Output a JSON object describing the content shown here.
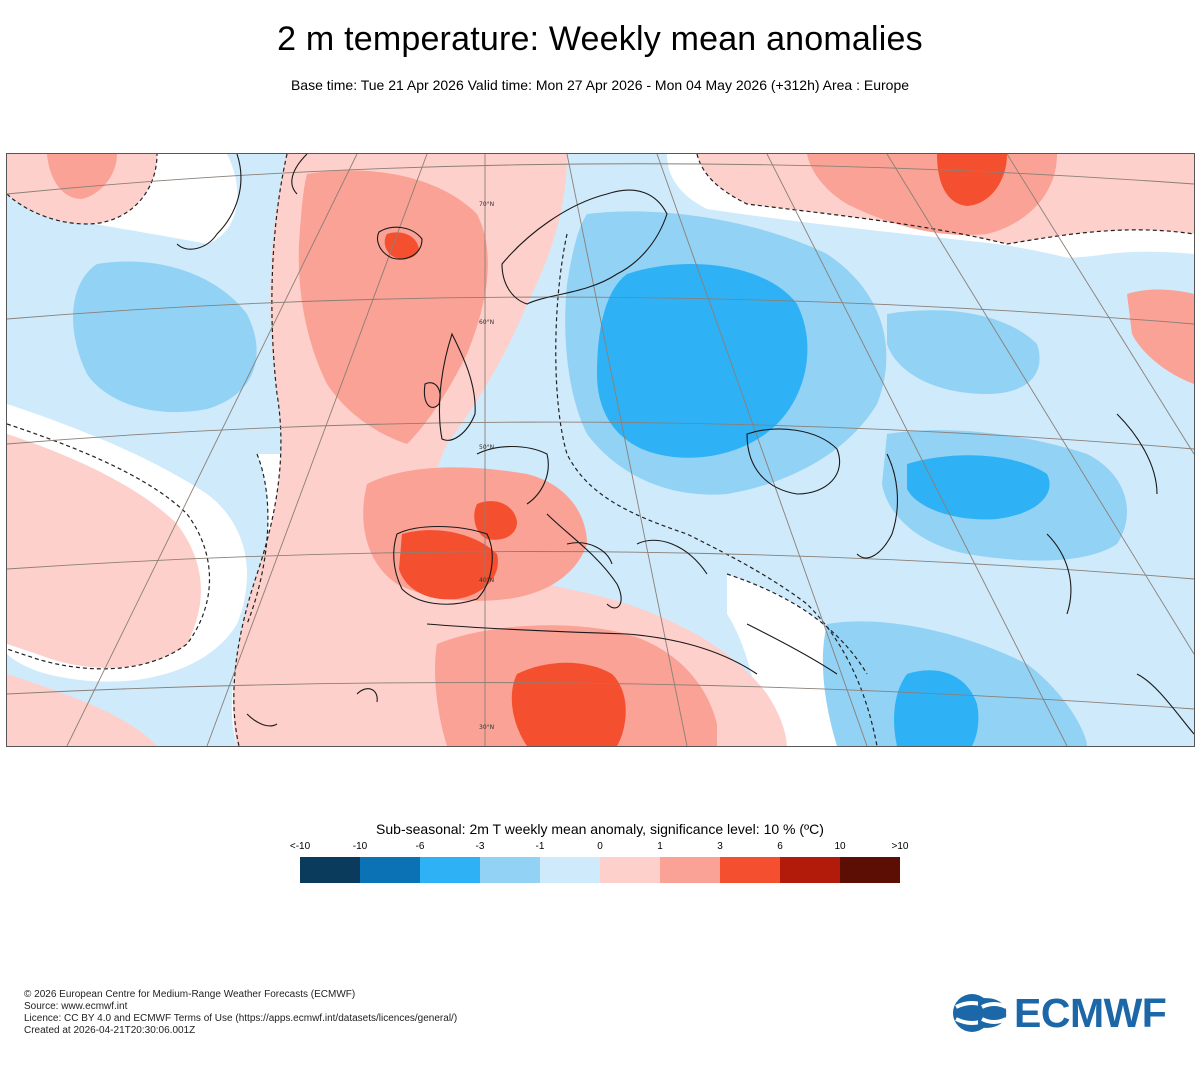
{
  "header": {
    "title": "2 m temperature: Weekly mean anomalies",
    "subtitle": "Base time: Tue 21 Apr 2026 Valid time: Mon 27 Apr 2026 - Mon 04 May 2026 (+312h) Area : Europe"
  },
  "map": {
    "region": "Europe",
    "latitude_labels": [
      "70°N",
      "60°N",
      "50°N",
      "40°N",
      "30°N"
    ]
  },
  "legend": {
    "title": "Sub-seasonal: 2m T weekly mean anomaly, significance level: 10 % (ºC)",
    "labels": [
      "<-10",
      "-10",
      "-6",
      "-3",
      "-1",
      "0",
      "1",
      "3",
      "6",
      "10",
      ">10"
    ],
    "colors": [
      "#0a3a5c",
      "#0b73b5",
      "#2fb2f5",
      "#92d2f5",
      "#cfeafb",
      "#fdd0cb",
      "#f9a295",
      "#f4502f",
      "#b21a0a",
      "#5c0e05"
    ]
  },
  "footer": {
    "lines": [
      "© 2026 European Centre for Medium-Range Weather Forecasts (ECMWF)",
      "Source: www.ecmwf.int",
      "Licence: CC BY 4.0 and ECMWF Terms of Use (https://apps.ecmwf.int/datasets/licences/general/)",
      "Created at 2026-04-21T20:30:06.001Z"
    ]
  },
  "logo": {
    "text": "ECMWF",
    "color": "#1b67a8"
  }
}
